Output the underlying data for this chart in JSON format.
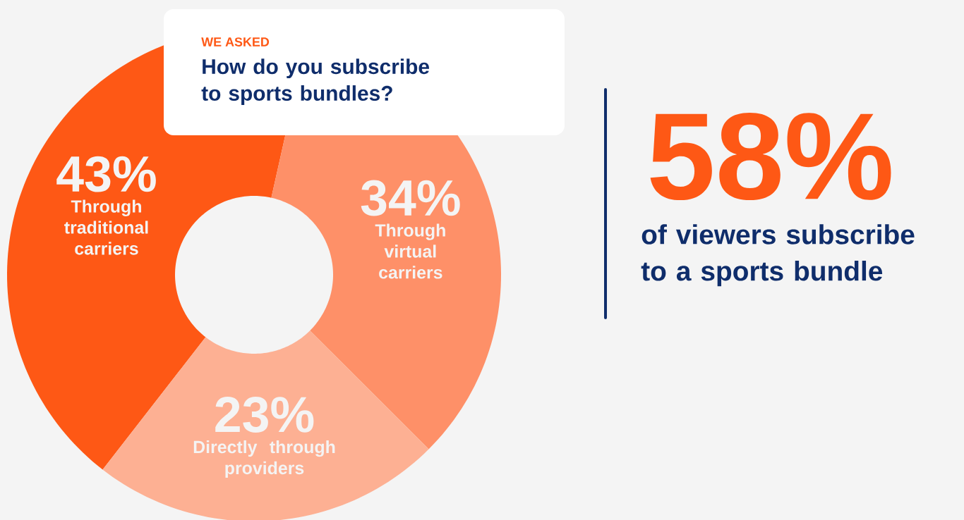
{
  "chart_data": {
    "type": "donut",
    "subtitle": "WE ASKED",
    "title": "How do you subscribe to sports bundles?",
    "categories": [
      "Through traditional carriers",
      "Through virtual carriers",
      "Directly through providers"
    ],
    "values": [
      43,
      34,
      23
    ],
    "value_labels": [
      "43%",
      "34%",
      "23%"
    ],
    "colors": [
      "#fe5815",
      "#fe9068",
      "#fdb093"
    ],
    "annotations": [
      "58%",
      "of viewers subscribe to a sports bundle"
    ]
  }
}
